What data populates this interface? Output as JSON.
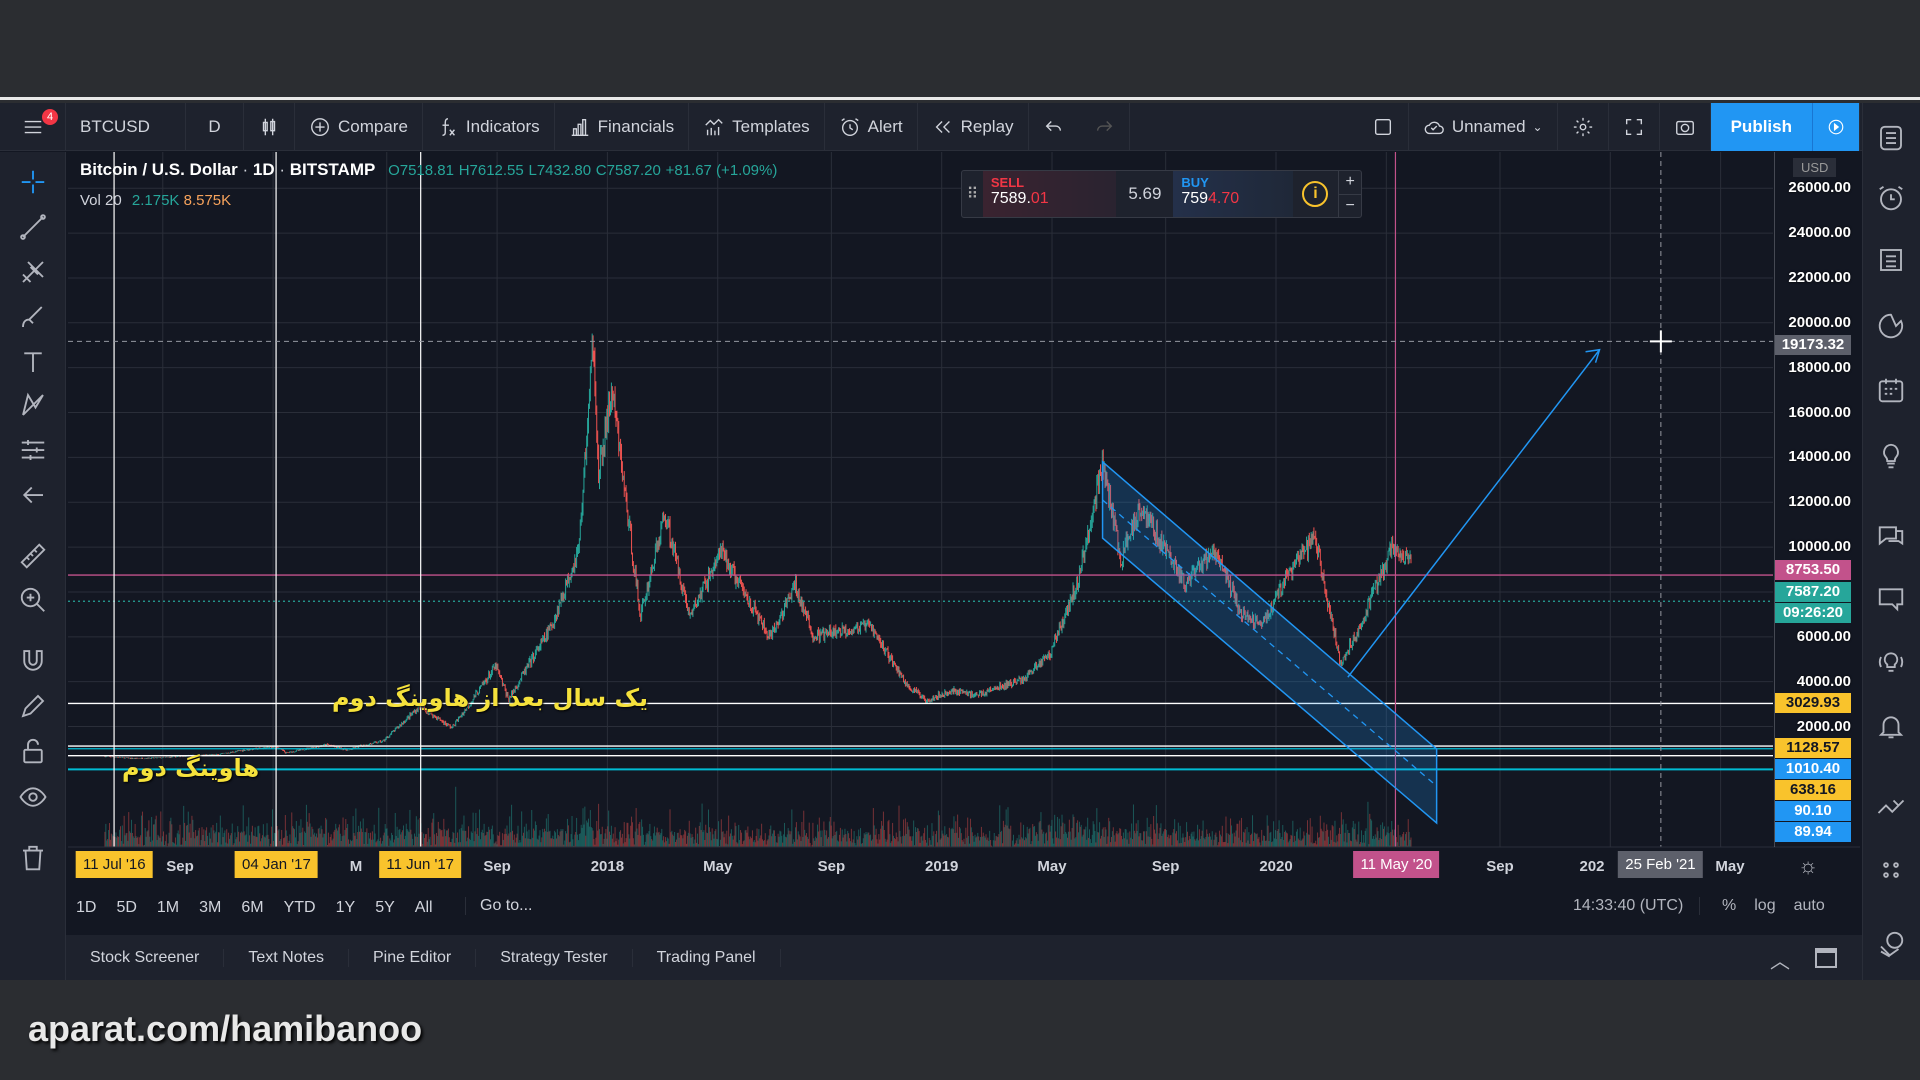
{
  "toolbar": {
    "symbol": "BTCUSD",
    "interval": "D",
    "compare": "Compare",
    "indicators": "Indicators",
    "financials": "Financials",
    "templates": "Templates",
    "alert": "Alert",
    "replay": "Replay",
    "layout_name": "Unnamed",
    "publish": "Publish",
    "notification_count": "4"
  },
  "legend": {
    "title": "Bitcoin / U.S. Dollar",
    "interval": "1D",
    "exchange": "BITSTAMP",
    "open": "O7518.81",
    "high": "H7612.55",
    "low": "L7432.80",
    "close": "C7587.20",
    "change": "+81.67 (+1.09%)",
    "vol_label": "Vol 20",
    "vol1": "2.175K",
    "vol2": "8.575K"
  },
  "trade": {
    "sell_label": "SELL",
    "sell_main": "7589.",
    "sell_frac": "01",
    "spread": "5.69",
    "buy_label": "BUY",
    "buy_main": "759",
    "buy_frac": "4.70"
  },
  "price_axis": {
    "currency": "USD",
    "ticks": [
      "26000.00",
      "24000.00",
      "22000.00",
      "20000.00",
      "18000.00",
      "16000.00",
      "14000.00",
      "12000.00",
      "10000.00",
      "6000.00",
      "4000.00",
      "2000.00"
    ],
    "tags": [
      {
        "text": "19173.32",
        "color": "#5d606b"
      },
      {
        "text": "8753.50",
        "color": "#c2528b"
      },
      {
        "text": "7587.20",
        "color": "#26a69a"
      },
      {
        "text": "09:26:20",
        "color": "#26a69a"
      },
      {
        "text": "3029.93",
        "color": "#f9c32c"
      },
      {
        "text": "1128.57",
        "color": "#f9c32c"
      },
      {
        "text": "1010.40",
        "color": "#2196f3"
      },
      {
        "text": "638.16",
        "color": "#f9c32c"
      },
      {
        "text": "90.10",
        "color": "#2196f3"
      },
      {
        "text": "89.94",
        "color": "#2196f3"
      }
    ]
  },
  "time_axis": {
    "labels": [
      "Sep",
      "M",
      "Sep",
      "2018",
      "May",
      "Sep",
      "2019",
      "May",
      "Sep",
      "2020",
      "Sep",
      "202",
      "May"
    ],
    "tags": [
      {
        "text": "11 Jul '16",
        "color": "#f9c32c"
      },
      {
        "text": "04 Jan '17",
        "color": "#f9c32c"
      },
      {
        "text": "11 Jun '17",
        "color": "#f9c32c"
      },
      {
        "text": "11 May '20",
        "color": "#c2528b"
      },
      {
        "text": "25 Feb '21",
        "color": "#5d606b"
      }
    ]
  },
  "ranges": [
    "1D",
    "5D",
    "1M",
    "3M",
    "6M",
    "YTD",
    "1Y",
    "5Y",
    "All"
  ],
  "goto": "Go to...",
  "clock": "14:33:40 (UTC)",
  "scale_opts": [
    "%",
    "log",
    "auto"
  ],
  "bottom_tabs": [
    "Stock Screener",
    "Text Notes",
    "Pine Editor",
    "Strategy Tester",
    "Trading Panel"
  ],
  "annotations": {
    "halving_one_year": "یک سال بعد از هاوینگ دوم",
    "halving": "هاوینگ دوم"
  },
  "watermark": "aparat.com/hamibanoo",
  "chart_data": {
    "type": "candlestick",
    "symbol": "BTCUSD",
    "ylim": [
      0,
      27000
    ],
    "y_scale": "linear",
    "grid": true,
    "close": [
      [
        "2016-07-01",
        670
      ],
      [
        "2016-08-01",
        575
      ],
      [
        "2016-09-01",
        608
      ],
      [
        "2016-10-01",
        700
      ],
      [
        "2016-11-01",
        740
      ],
      [
        "2016-12-01",
        960
      ],
      [
        "2017-01-05",
        1100
      ],
      [
        "2017-01-15",
        820
      ],
      [
        "2017-02-01",
        970
      ],
      [
        "2017-03-01",
        1190
      ],
      [
        "2017-03-25",
        930
      ],
      [
        "2017-04-01",
        1080
      ],
      [
        "2017-05-01",
        1350
      ],
      [
        "2017-06-10",
        2900
      ],
      [
        "2017-07-15",
        1950
      ],
      [
        "2017-08-01",
        2870
      ],
      [
        "2017-09-01",
        4700
      ],
      [
        "2017-09-15",
        3200
      ],
      [
        "2017-10-01",
        4340
      ],
      [
        "2017-11-01",
        6450
      ],
      [
        "2017-12-01",
        10000
      ],
      [
        "2017-12-17",
        19500
      ],
      [
        "2017-12-22",
        13000
      ],
      [
        "2018-01-06",
        17000
      ],
      [
        "2018-02-06",
        6900
      ],
      [
        "2018-03-05",
        11500
      ],
      [
        "2018-04-01",
        6900
      ],
      [
        "2018-05-05",
        9800
      ],
      [
        "2018-06-28",
        5900
      ],
      [
        "2018-07-25",
        8300
      ],
      [
        "2018-08-14",
        6000
      ],
      [
        "2018-10-15",
        6500
      ],
      [
        "2018-11-25",
        3800
      ],
      [
        "2018-12-15",
        3200
      ],
      [
        "2019-01-15",
        3600
      ],
      [
        "2019-02-08",
        3400
      ],
      [
        "2019-03-31",
        4100
      ],
      [
        "2019-04-30",
        5300
      ],
      [
        "2019-05-31",
        8570
      ],
      [
        "2019-06-26",
        13800
      ],
      [
        "2019-07-16",
        9400
      ],
      [
        "2019-08-06",
        11900
      ],
      [
        "2019-09-25",
        8300
      ],
      [
        "2019-10-26",
        9900
      ],
      [
        "2019-11-25",
        7000
      ],
      [
        "2019-12-18",
        6600
      ],
      [
        "2020-01-15",
        8800
      ],
      [
        "2020-02-13",
        10400
      ],
      [
        "2020-03-12",
        4800
      ],
      [
        "2020-04-01",
        6400
      ],
      [
        "2020-05-07",
        9900
      ],
      [
        "2020-05-20",
        9500
      ],
      [
        "2020-05-28",
        9600
      ]
    ],
    "horizontal_lines": [
      8753.5,
      7587.2,
      3029.93,
      1128.57,
      1010.4
    ],
    "vertical_lines": [
      "2016-07-11",
      "2017-01-04",
      "2017-06-11",
      "2020-05-11"
    ],
    "crosshair": {
      "price": 19173.32,
      "date": "2021-02-25"
    },
    "colors": {
      "up": "#26a69a",
      "down": "#ef5350",
      "channel": "#2196f3",
      "accent": "#2196f3"
    }
  }
}
